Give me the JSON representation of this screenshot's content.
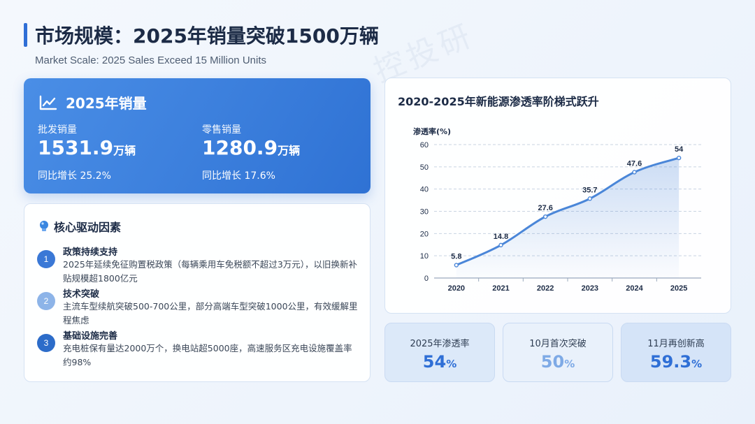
{
  "header": {
    "title": "市场规模：2025年销量突破1500万辆",
    "subtitle": "Market Scale: 2025 Sales Exceed 15 Million Units",
    "watermark": "控投研"
  },
  "sales": {
    "title": "2025年销量",
    "icon": "line-chart-icon",
    "wholesale": {
      "label": "批发销量",
      "value": "1531.9",
      "unit": "万辆",
      "growth": "同比增长 25.2%"
    },
    "retail": {
      "label": "零售销量",
      "value": "1280.9",
      "unit": "万辆",
      "growth": "同比增长 17.6%"
    }
  },
  "drivers": {
    "title": "核心驱动因素",
    "icon": "lightbulb-icon",
    "items": [
      {
        "num": "1",
        "title": "政策持续支持",
        "desc": "2025年延续免征购置税政策（每辆乘用车免税额不超过3万元），以旧换新补贴规模超1800亿元",
        "color": "#3a78d6"
      },
      {
        "num": "2",
        "title": "技术突破",
        "desc": "主流车型续航突破500-700公里，部分高端车型突破1000公里，有效缓解里程焦虑",
        "color": "#8db4e8"
      },
      {
        "num": "3",
        "title": "基础设施完善",
        "desc": "充电桩保有量达2000万个，换电站超5000座，高速服务区充电设施覆盖率约98%",
        "color": "#2c6cc9"
      }
    ]
  },
  "chart_data": {
    "type": "area",
    "title": "2020-2025年新能源渗透率阶梯式跃升",
    "ylabel": "渗透率(%)",
    "xlabel": "",
    "categories": [
      "2020",
      "2021",
      "2022",
      "2023",
      "2024",
      "2025"
    ],
    "values": [
      5.8,
      14.8,
      27.6,
      35.7,
      47.6,
      54
    ],
    "data_labels": [
      "5.8",
      "14.8",
      "27.6",
      "35.7",
      "47.6",
      "54"
    ],
    "yticks": [
      "0",
      "10",
      "20",
      "30",
      "40",
      "50",
      "60"
    ],
    "ylim": [
      0,
      60
    ],
    "grid": true,
    "line_color": "#4a86d8"
  },
  "stats": [
    {
      "label": "2025年渗透率",
      "value": "54",
      "unit": "%",
      "color": "#2f6fd6",
      "bg": "#dce9f9"
    },
    {
      "label": "10月首次突破",
      "value": "50",
      "unit": "%",
      "color": "#7eaae6",
      "bg": "#e9f1fb"
    },
    {
      "label": "11月再创新高",
      "value": "59.3",
      "unit": "%",
      "color": "#2f6fd6",
      "bg": "#d5e4f8"
    }
  ]
}
